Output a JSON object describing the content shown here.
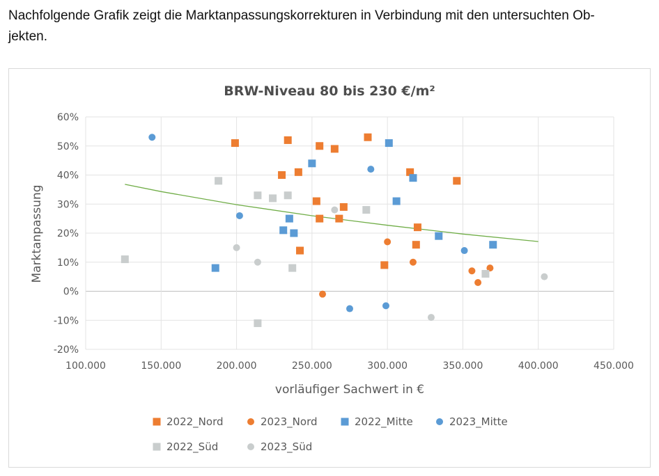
{
  "intro": {
    "line1": "Nachfolgende Grafik zeigt die Marktanpassungskorrekturen in Verbindung mit den untersuchten Ob-",
    "line2": "jekten."
  },
  "chart_data": {
    "type": "scatter",
    "title": "BRW-Niveau 80 bis 230 €/m²",
    "xlabel": "vorläufiger Sachwert in €",
    "ylabel": "Marktanpassung",
    "xlim": [
      100000,
      450000
    ],
    "ylim": [
      -20,
      60
    ],
    "x_ticks": [
      100000,
      150000,
      200000,
      250000,
      300000,
      350000,
      400000,
      450000
    ],
    "x_tick_labels": [
      "100.000",
      "150.000",
      "200.000",
      "250.000",
      "300.000",
      "350.000",
      "400.000",
      "450.000"
    ],
    "y_ticks": [
      -20,
      -10,
      0,
      10,
      20,
      30,
      40,
      50,
      60
    ],
    "y_tick_labels": [
      "-20%",
      "-10%",
      "0%",
      "10%",
      "20%",
      "30%",
      "40%",
      "50%",
      "60%"
    ],
    "grid": true,
    "legend_position": "bottom",
    "series": [
      {
        "name": "2022_Nord",
        "marker": "square",
        "color": "#ed7d31",
        "points": [
          [
            199000,
            51
          ],
          [
            234000,
            52
          ],
          [
            255000,
            50
          ],
          [
            265000,
            49
          ],
          [
            287000,
            53
          ],
          [
            230000,
            40
          ],
          [
            241000,
            41
          ],
          [
            253000,
            31
          ],
          [
            271000,
            29
          ],
          [
            255000,
            25
          ],
          [
            268000,
            25
          ],
          [
            242000,
            14
          ],
          [
            315000,
            41
          ],
          [
            346000,
            38
          ],
          [
            320000,
            22
          ],
          [
            319000,
            16
          ],
          [
            298000,
            9
          ]
        ]
      },
      {
        "name": "2023_Nord",
        "marker": "circle",
        "color": "#ed7d31",
        "points": [
          [
            257000,
            -1
          ],
          [
            300000,
            17
          ],
          [
            317000,
            10
          ],
          [
            356000,
            7
          ],
          [
            360000,
            3
          ],
          [
            368000,
            8
          ]
        ]
      },
      {
        "name": "2022_Mitte",
        "marker": "square",
        "color": "#5b9bd5",
        "points": [
          [
            186000,
            8
          ],
          [
            231000,
            21
          ],
          [
            235000,
            25
          ],
          [
            238000,
            20
          ],
          [
            250000,
            44
          ],
          [
            301000,
            51
          ],
          [
            306000,
            31
          ],
          [
            317000,
            39
          ],
          [
            334000,
            19
          ],
          [
            370000,
            16
          ]
        ]
      },
      {
        "name": "2023_Mitte",
        "marker": "circle",
        "color": "#5b9bd5",
        "points": [
          [
            144000,
            53
          ],
          [
            202000,
            26
          ],
          [
            275000,
            -6
          ],
          [
            289000,
            42
          ],
          [
            299000,
            -5
          ],
          [
            351000,
            14
          ]
        ]
      },
      {
        "name": "2022_Süd",
        "marker": "square",
        "color": "#c9cdcd",
        "points": [
          [
            126000,
            11
          ],
          [
            188000,
            38
          ],
          [
            214000,
            33
          ],
          [
            224000,
            32
          ],
          [
            234000,
            33
          ],
          [
            237000,
            8
          ],
          [
            214000,
            -11
          ],
          [
            286000,
            28
          ],
          [
            365000,
            6
          ]
        ]
      },
      {
        "name": "2023_Süd",
        "marker": "circle",
        "color": "#c9cdcd",
        "points": [
          [
            200000,
            15
          ],
          [
            214000,
            10
          ],
          [
            265000,
            28
          ],
          [
            329000,
            -9
          ],
          [
            404000,
            5
          ]
        ]
      }
    ],
    "trendline": {
      "color": "#70ad47",
      "points": [
        [
          126000,
          36.8
        ],
        [
          150000,
          34.3
        ],
        [
          200000,
          29.8
        ],
        [
          250000,
          26.0
        ],
        [
          300000,
          22.7
        ],
        [
          350000,
          19.7
        ],
        [
          400000,
          17.1
        ]
      ]
    }
  }
}
